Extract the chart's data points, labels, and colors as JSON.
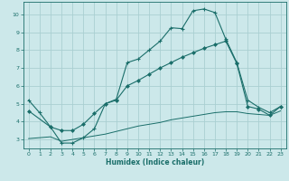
{
  "xlabel": "Humidex (Indice chaleur)",
  "xlim": [
    -0.5,
    23.5
  ],
  "ylim": [
    2.5,
    10.7
  ],
  "xticks": [
    0,
    1,
    2,
    3,
    4,
    5,
    6,
    7,
    8,
    9,
    10,
    11,
    12,
    13,
    14,
    15,
    16,
    17,
    18,
    19,
    20,
    21,
    22,
    23
  ],
  "yticks": [
    3,
    4,
    5,
    6,
    7,
    8,
    9,
    10
  ],
  "background_color": "#cce8ea",
  "grid_color": "#aacfd2",
  "line_color": "#1a6e6a",
  "line1_x": [
    0,
    1,
    2,
    3,
    4,
    5,
    6,
    7,
    8,
    9,
    10,
    11,
    12,
    13,
    14,
    15,
    16,
    17,
    18,
    19,
    20,
    21,
    22,
    23
  ],
  "line1_y": [
    5.2,
    4.5,
    3.7,
    2.8,
    2.8,
    3.1,
    3.6,
    5.0,
    5.25,
    7.3,
    7.5,
    8.0,
    8.5,
    9.25,
    9.2,
    10.2,
    10.3,
    10.1,
    8.6,
    7.3,
    5.2,
    4.8,
    4.5,
    4.85
  ],
  "line2_x": [
    0,
    2,
    3,
    4,
    5,
    6,
    7,
    8,
    9,
    10,
    11,
    12,
    13,
    14,
    15,
    16,
    17,
    18,
    19,
    20,
    21,
    22,
    23
  ],
  "line2_y": [
    4.6,
    3.7,
    3.5,
    3.5,
    3.85,
    4.45,
    5.0,
    5.2,
    6.0,
    6.3,
    6.65,
    7.0,
    7.3,
    7.6,
    7.85,
    8.1,
    8.3,
    8.5,
    7.25,
    4.85,
    4.7,
    4.35,
    4.85
  ],
  "line3_x": [
    0,
    1,
    2,
    3,
    4,
    5,
    6,
    7,
    8,
    9,
    10,
    11,
    12,
    13,
    14,
    15,
    16,
    17,
    18,
    19,
    20,
    21,
    22,
    23
  ],
  "line3_y": [
    3.05,
    3.1,
    3.15,
    2.9,
    3.0,
    3.1,
    3.2,
    3.3,
    3.45,
    3.6,
    3.75,
    3.85,
    3.95,
    4.1,
    4.2,
    4.3,
    4.4,
    4.5,
    4.55,
    4.55,
    4.45,
    4.4,
    4.35,
    4.6
  ],
  "figsize": [
    3.2,
    2.0
  ],
  "dpi": 100
}
